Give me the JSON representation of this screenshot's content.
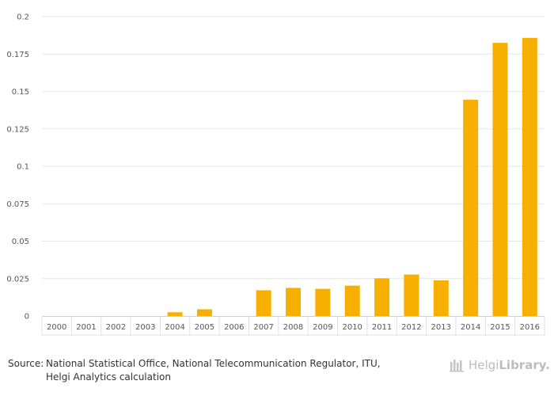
{
  "chart_data": {
    "type": "bar",
    "title": "",
    "xlabel": "",
    "ylabel": "",
    "categories": [
      "2000",
      "2001",
      "2002",
      "2003",
      "2004",
      "2005",
      "2006",
      "2007",
      "2008",
      "2009",
      "2010",
      "2011",
      "2012",
      "2013",
      "2014",
      "2015",
      "2016"
    ],
    "values": [
      0,
      0,
      0,
      0,
      0.0025,
      0.0045,
      0,
      0.0172,
      0.0188,
      0.0182,
      0.0203,
      0.0252,
      0.0277,
      0.0238,
      0.1445,
      0.1825,
      0.1858
    ],
    "ylim": [
      0,
      0.2
    ],
    "yticks": [
      "0",
      "0.025",
      "0.05",
      "0.075",
      "0.1",
      "0.125",
      "0.15",
      "0.175",
      "0.2"
    ],
    "grid": true,
    "bar_color": "#f7b000"
  },
  "footer": {
    "source_prefix": "Source:",
    "source_line1": "National Statistical Office, National Telecommunication Regulator, ITU,",
    "source_line2": "Helgi Analytics calculation"
  },
  "brand": {
    "part1": "Helgi",
    "part2": "Library.",
    "icon": "helgi-library-logo-icon"
  }
}
